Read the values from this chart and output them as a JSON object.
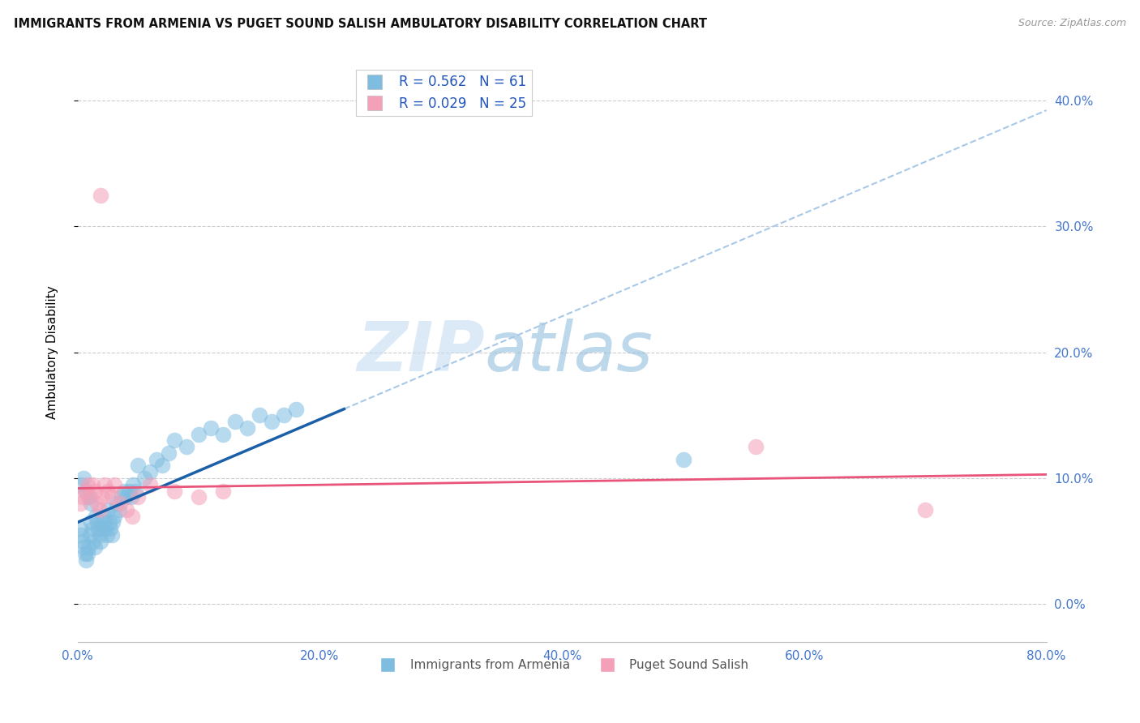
{
  "title": "IMMIGRANTS FROM ARMENIA VS PUGET SOUND SALISH AMBULATORY DISABILITY CORRELATION CHART",
  "source": "Source: ZipAtlas.com",
  "ylabel_label": "Ambulatory Disability",
  "legend_label1": "Immigrants from Armenia",
  "legend_label2": "Puget Sound Salish",
  "R1": 0.562,
  "N1": 61,
  "R2": 0.029,
  "N2": 25,
  "xmin": 0.0,
  "xmax": 0.8,
  "ymin": -0.03,
  "ymax": 0.43,
  "ytick_vals": [
    0.0,
    0.1,
    0.2,
    0.3,
    0.4
  ],
  "xtick_vals": [
    0.0,
    0.2,
    0.4,
    0.6,
    0.8
  ],
  "color_blue": "#7fbde0",
  "color_pink": "#f4a0b8",
  "color_line_blue": "#1a5fa8",
  "color_line_pink": "#e8547a",
  "color_dashed": "#a8c8e8",
  "watermark_zip": "ZIP",
  "watermark_atlas": "atlas",
  "blue_scatter_x": [
    0.002,
    0.003,
    0.004,
    0.005,
    0.006,
    0.007,
    0.008,
    0.009,
    0.01,
    0.011,
    0.012,
    0.013,
    0.014,
    0.015,
    0.016,
    0.017,
    0.018,
    0.019,
    0.02,
    0.021,
    0.022,
    0.023,
    0.024,
    0.025,
    0.026,
    0.027,
    0.028,
    0.029,
    0.03,
    0.032,
    0.034,
    0.036,
    0.038,
    0.04,
    0.042,
    0.044,
    0.046,
    0.048,
    0.05,
    0.055,
    0.06,
    0.065,
    0.07,
    0.075,
    0.08,
    0.09,
    0.1,
    0.11,
    0.12,
    0.13,
    0.14,
    0.15,
    0.16,
    0.17,
    0.18,
    0.003,
    0.005,
    0.007,
    0.009,
    0.011,
    0.5
  ],
  "blue_scatter_y": [
    0.06,
    0.055,
    0.05,
    0.045,
    0.04,
    0.035,
    0.04,
    0.045,
    0.055,
    0.065,
    0.06,
    0.05,
    0.045,
    0.07,
    0.065,
    0.06,
    0.055,
    0.05,
    0.06,
    0.065,
    0.07,
    0.06,
    0.055,
    0.075,
    0.065,
    0.06,
    0.055,
    0.065,
    0.07,
    0.08,
    0.075,
    0.085,
    0.09,
    0.085,
    0.09,
    0.085,
    0.095,
    0.09,
    0.11,
    0.1,
    0.105,
    0.115,
    0.11,
    0.12,
    0.13,
    0.125,
    0.135,
    0.14,
    0.135,
    0.145,
    0.14,
    0.15,
    0.145,
    0.15,
    0.155,
    0.095,
    0.1,
    0.09,
    0.085,
    0.08,
    0.115
  ],
  "pink_scatter_x": [
    0.002,
    0.004,
    0.006,
    0.008,
    0.01,
    0.012,
    0.014,
    0.016,
    0.018,
    0.02,
    0.022,
    0.025,
    0.028,
    0.03,
    0.035,
    0.04,
    0.045,
    0.05,
    0.06,
    0.08,
    0.1,
    0.12,
    0.019,
    0.7,
    0.56
  ],
  "pink_scatter_y": [
    0.08,
    0.085,
    0.09,
    0.095,
    0.085,
    0.095,
    0.09,
    0.08,
    0.075,
    0.085,
    0.095,
    0.09,
    0.085,
    0.095,
    0.08,
    0.075,
    0.07,
    0.085,
    0.095,
    0.09,
    0.085,
    0.09,
    0.325,
    0.075,
    0.125
  ],
  "blue_line_x0": 0.0,
  "blue_line_x1": 0.22,
  "blue_line_y0": 0.065,
  "blue_line_y1": 0.155,
  "pink_line_x0": 0.0,
  "pink_line_x1": 0.8,
  "pink_line_y0": 0.092,
  "pink_line_y1": 0.103
}
